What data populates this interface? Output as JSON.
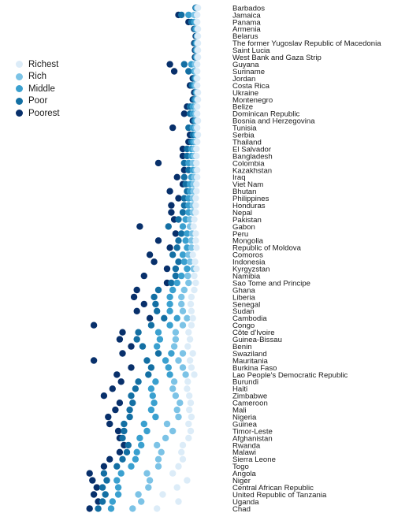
{
  "legend": [
    {
      "label": "Richest",
      "color": "#dcecf8"
    },
    {
      "label": "Rich",
      "color": "#7cc3e6"
    },
    {
      "label": "Middle",
      "color": "#3aa0cf"
    },
    {
      "label": "Poor",
      "color": "#136fa3"
    },
    {
      "label": "Poorest",
      "color": "#08306b"
    }
  ],
  "chart_data": {
    "type": "scatter",
    "title": "",
    "xlabel": "",
    "ylabel": "",
    "xlim": [
      0,
      100
    ],
    "series_order": [
      "Richest",
      "Rich",
      "Middle",
      "Poor",
      "Poorest"
    ],
    "rows": [
      {
        "country": "Barbados",
        "values": [
          99.5,
          99,
          98.5,
          98,
          98
        ]
      },
      {
        "country": "Jamaica",
        "values": [
          99,
          97,
          93,
          88,
          86
        ]
      },
      {
        "country": "Panama",
        "values": [
          99,
          98.5,
          97,
          95,
          93
        ]
      },
      {
        "country": "Armenia",
        "values": [
          99.5,
          99,
          98,
          97.5,
          97
        ]
      },
      {
        "country": "Belarus",
        "values": [
          99.5,
          99,
          99,
          98.5,
          98
        ]
      },
      {
        "country": "The former Yugoslav Republic of Macedonia",
        "values": [
          99.5,
          99,
          98.5,
          97.5,
          97
        ]
      },
      {
        "country": "Saint Lucia",
        "values": [
          99.5,
          99,
          98.5,
          98,
          97.5
        ]
      },
      {
        "country": "West Bank and Gaza Strip",
        "values": [
          99.5,
          99,
          98.5,
          98,
          97.5
        ]
      },
      {
        "country": "Guyana",
        "values": [
          99,
          97.5,
          95,
          90,
          80
        ]
      },
      {
        "country": "Suriname",
        "values": [
          99,
          98,
          97,
          93,
          83
        ]
      },
      {
        "country": "Jordan",
        "values": [
          99,
          98.5,
          98,
          97,
          96
        ]
      },
      {
        "country": "Costa Rica",
        "values": [
          99,
          98,
          97,
          95.5,
          94
        ]
      },
      {
        "country": "Ukraine",
        "values": [
          99.5,
          99,
          98.5,
          98,
          97
        ]
      },
      {
        "country": "Montenegro",
        "values": [
          99.5,
          99,
          98,
          97,
          96
        ]
      },
      {
        "country": "Belize",
        "values": [
          99,
          98,
          96,
          94,
          92
        ]
      },
      {
        "country": "Dominican Republic",
        "values": [
          99,
          98,
          96,
          94,
          90
        ]
      },
      {
        "country": "Bosnia and Herzegovina",
        "values": [
          99.5,
          99,
          98,
          97,
          96
        ]
      },
      {
        "country": "Tunisia",
        "values": [
          99,
          98,
          96,
          93,
          82
        ]
      },
      {
        "country": "Serbia",
        "values": [
          99.5,
          99,
          98,
          96,
          94
        ]
      },
      {
        "country": "Thailand",
        "values": [
          99,
          98,
          96.5,
          95,
          93
        ]
      },
      {
        "country": "El Salvador",
        "values": [
          98.5,
          97,
          95,
          92,
          89
        ]
      },
      {
        "country": "Bangladesh",
        "values": [
          98.5,
          97,
          95,
          92,
          89
        ]
      },
      {
        "country": "Colombia",
        "values": [
          98.5,
          96,
          93,
          90,
          72
        ]
      },
      {
        "country": "Kazakhstan",
        "values": [
          99,
          98,
          96,
          93,
          90
        ]
      },
      {
        "country": "Iraq",
        "values": [
          99,
          97,
          95,
          90,
          85
        ]
      },
      {
        "country": "Viet Nam",
        "values": [
          98.5,
          96.5,
          94,
          91,
          89
        ]
      },
      {
        "country": "Bhutan",
        "values": [
          98.5,
          96.5,
          94,
          92,
          80
        ]
      },
      {
        "country": "Philippines",
        "values": [
          98,
          96,
          93,
          90,
          86
        ]
      },
      {
        "country": "Honduras",
        "values": [
          98,
          96,
          93,
          90,
          81
        ]
      },
      {
        "country": "Nepal",
        "values": [
          98,
          96,
          93,
          89,
          81
        ]
      },
      {
        "country": "Pakistan",
        "values": [
          97,
          94,
          91,
          86,
          83
        ]
      },
      {
        "country": "Gabon",
        "values": [
          96.5,
          94,
          89,
          79,
          59
        ]
      },
      {
        "country": "Peru",
        "values": [
          98,
          95.5,
          92,
          88,
          84
        ]
      },
      {
        "country": "Mongolia",
        "values": [
          98,
          95,
          91,
          86,
          72
        ]
      },
      {
        "country": "Republic of Moldova",
        "values": [
          98.5,
          95,
          92,
          85,
          80
        ]
      },
      {
        "country": "Comoros",
        "values": [
          96,
          93,
          89,
          82,
          66
        ]
      },
      {
        "country": "Indonesia",
        "values": [
          97.5,
          94,
          90,
          86,
          69
        ]
      },
      {
        "country": "Kyrgyzstan",
        "values": [
          98.5,
          96.5,
          92,
          84,
          78
        ]
      },
      {
        "country": "Namibia",
        "values": [
          97,
          92.5,
          88,
          84,
          62
        ]
      },
      {
        "country": "Sao Tome and Principe",
        "values": [
          98,
          93,
          85,
          81,
          78
        ]
      },
      {
        "country": "Ghana",
        "values": [
          97,
          90,
          82,
          72,
          57
        ]
      },
      {
        "country": "Liberia",
        "values": [
          95,
          88,
          80,
          69,
          55
        ]
      },
      {
        "country": "Senegal",
        "values": [
          94.5,
          88,
          80,
          70,
          62
        ]
      },
      {
        "country": "Sudan",
        "values": [
          95,
          89,
          80,
          71,
          57
        ]
      },
      {
        "country": "Cambodia",
        "values": [
          96,
          92,
          85,
          76,
          66
        ]
      },
      {
        "country": "Congo",
        "values": [
          95,
          89,
          80,
          67,
          27
        ]
      },
      {
        "country": "Côte d'Ivoire",
        "values": [
          93,
          84,
          72,
          58,
          47
        ]
      },
      {
        "country": "Guinea-Bissau",
        "values": [
          94,
          84,
          73,
          57,
          45
        ]
      },
      {
        "country": "Benin",
        "values": [
          92.5,
          83,
          71,
          61,
          53
        ]
      },
      {
        "country": "Swaziland",
        "values": [
          96,
          89,
          81,
          72,
          47
        ]
      },
      {
        "country": "Mauritania",
        "values": [
          94,
          86,
          77,
          64,
          27
        ]
      },
      {
        "country": "Burkina Faso",
        "values": [
          95,
          89,
          79,
          67,
          53
        ]
      },
      {
        "country": "Lao People's Democratic Republic",
        "values": [
          97,
          91,
          80,
          65,
          43
        ]
      },
      {
        "country": "Burundi",
        "values": [
          92.5,
          83,
          70,
          58,
          46
        ]
      },
      {
        "country": "Haiti",
        "values": [
          92,
          82,
          67,
          56,
          40
        ]
      },
      {
        "country": "Zimbabwe",
        "values": [
          93.5,
          84,
          68,
          53,
          34
        ]
      },
      {
        "country": "Cameroon",
        "values": [
          94.5,
          87,
          69,
          54,
          45
        ]
      },
      {
        "country": "Mali",
        "values": [
          93.5,
          85,
          67,
          52,
          42
        ]
      },
      {
        "country": "Nigeria",
        "values": [
          95,
          86,
          70,
          52,
          37
        ]
      },
      {
        "country": "Guinea",
        "values": [
          93,
          78,
          62,
          48,
          38
        ]
      },
      {
        "country": "Timor-Leste",
        "values": [
          94.5,
          82,
          64,
          48,
          44
        ]
      },
      {
        "country": "Afghanistan",
        "values": [
          93,
          77,
          59,
          47,
          45
        ]
      },
      {
        "country": "Rwanda",
        "values": [
          89,
          71,
          60,
          51,
          48
        ]
      },
      {
        "country": "Malawi",
        "values": [
          88,
          74,
          57,
          50,
          45
        ]
      },
      {
        "country": "Sierra Leone",
        "values": [
          89,
          72,
          56,
          47,
          38
        ]
      },
      {
        "country": "Togo",
        "values": [
          86,
          72,
          53,
          43,
          34
        ]
      },
      {
        "country": "Angola",
        "values": [
          82,
          64,
          46,
          34,
          24
        ]
      },
      {
        "country": "Niger",
        "values": [
          92,
          66,
          43,
          36,
          26
        ]
      },
      {
        "country": "Central African Republic",
        "values": [
          85,
          65,
          44,
          33,
          29
        ]
      },
      {
        "country": "United Republic of Tanzania",
        "values": [
          75,
          58,
          44,
          35,
          27
        ]
      },
      {
        "country": "Uganda",
        "values": [
          86,
          60,
          40,
          33,
          30
        ]
      },
      {
        "country": "Chad",
        "values": [
          71,
          54,
          39,
          30,
          24
        ]
      }
    ]
  }
}
